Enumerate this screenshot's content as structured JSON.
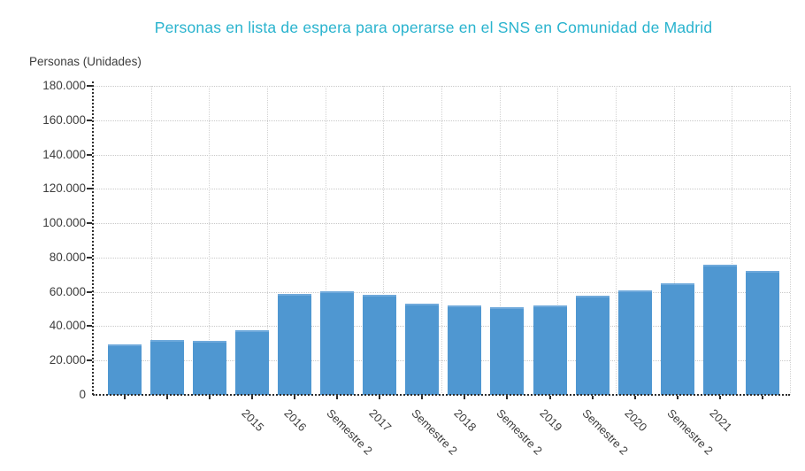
{
  "chart_data": {
    "type": "bar",
    "title": "Personas en lista de espera para operarse en el SNS en Comunidad de Madrid",
    "ylabel": "Personas (Unidades)",
    "xlabel": "",
    "categories": [
      "",
      "",
      "",
      "2015",
      "2016",
      "Semestre 2",
      "2017",
      "Semestre 2",
      "2018",
      "Semestre 2",
      "2019",
      "Semestre 2",
      "2020",
      "Semestre 2",
      "2021",
      ""
    ],
    "values": [
      29400,
      31800,
      31300,
      37500,
      58600,
      60500,
      58300,
      52900,
      52000,
      51000,
      52300,
      57900,
      60800,
      64800,
      75800,
      72100
    ],
    "ylim": [
      0,
      180000
    ],
    "ytick_interval": 20000,
    "ytick_labels": [
      "180.000",
      "160.000",
      "140.000",
      "120.000",
      "100.000",
      "80.000",
      "60.000",
      "40.000",
      "20.000",
      "0"
    ],
    "vertical_grid_divisions": 12,
    "grid": "dotted",
    "legend": null,
    "colors": {
      "bar": "#4f97d1",
      "title": "#29b3ce",
      "axis_text": "#3d3d3d",
      "grid_h": "#c9c9c9",
      "grid_v": "#d2d2d2",
      "axis_line": "#2e2e2e",
      "background": "#ffffff"
    }
  }
}
